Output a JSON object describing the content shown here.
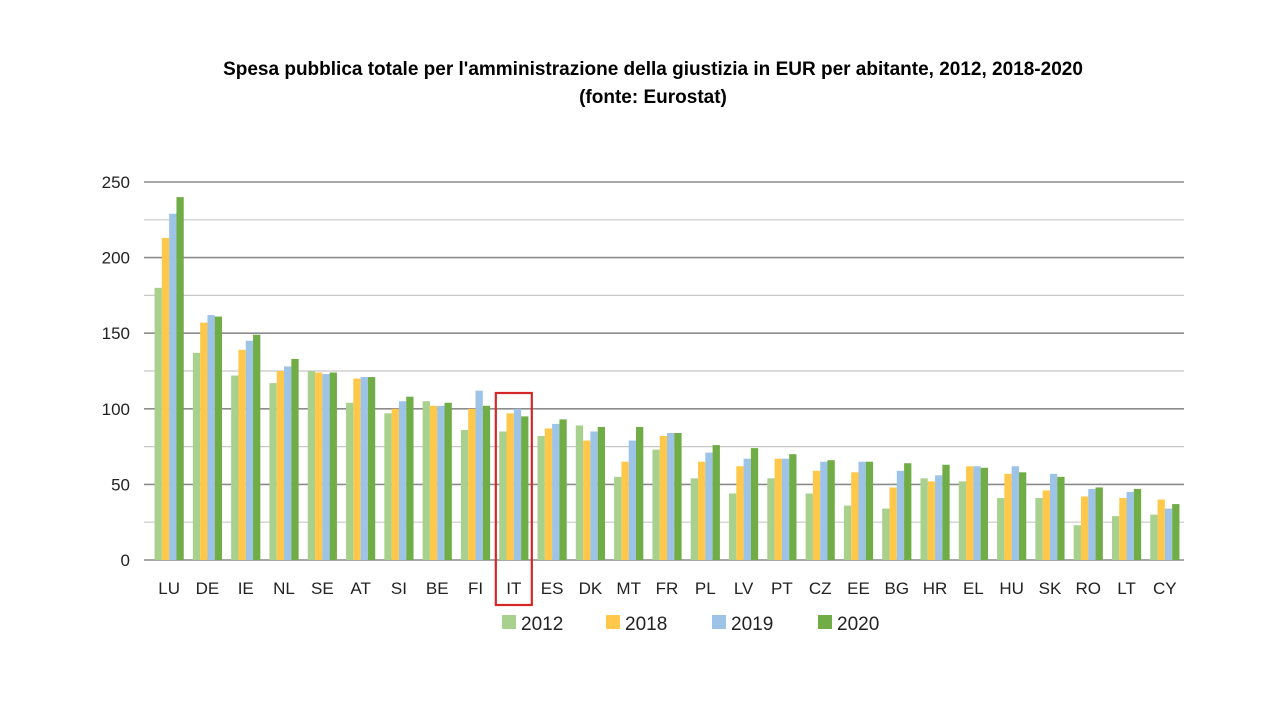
{
  "chart_data": {
    "type": "bar",
    "title": "Spesa pubblica totale per l'amministrazione della giustizia in EUR per abitante, 2012, 2018-2020",
    "subtitle": "(fonte: Eurostat)",
    "xlabel": "",
    "ylabel": "",
    "ylim": [
      0,
      250
    ],
    "yticks": [
      0,
      50,
      100,
      150,
      200,
      250
    ],
    "grid": true,
    "legend_position": "bottom",
    "highlight": "IT",
    "categories": [
      "LU",
      "DE",
      "IE",
      "NL",
      "SE",
      "AT",
      "SI",
      "BE",
      "FI",
      "IT",
      "ES",
      "DK",
      "MT",
      "FR",
      "PL",
      "LV",
      "PT",
      "CZ",
      "EE",
      "BG",
      "HR",
      "EL",
      "HU",
      "SK",
      "RO",
      "LT",
      "CY"
    ],
    "series": [
      {
        "name": "2012",
        "color": "#a9d18e",
        "values": [
          180,
          137,
          122,
          117,
          125,
          104,
          97,
          105,
          86,
          85,
          82,
          89,
          55,
          73,
          54,
          44,
          54,
          44,
          36,
          34,
          54,
          52,
          41,
          41,
          23,
          29,
          30
        ]
      },
      {
        "name": "2018",
        "color": "#ffc84a",
        "values": [
          213,
          157,
          139,
          125,
          124,
          120,
          100,
          102,
          100,
          97,
          87,
          79,
          65,
          82,
          65,
          62,
          67,
          59,
          58,
          48,
          52,
          62,
          57,
          46,
          42,
          41,
          40
        ]
      },
      {
        "name": "2019",
        "color": "#9dc3e6",
        "values": [
          229,
          162,
          145,
          128,
          123,
          121,
          105,
          102,
          112,
          100,
          90,
          85,
          79,
          84,
          71,
          67,
          67,
          65,
          65,
          59,
          56,
          62,
          62,
          57,
          47,
          45,
          34
        ]
      },
      {
        "name": "2020",
        "color": "#70ad47",
        "values": [
          240,
          161,
          149,
          133,
          124,
          121,
          108,
          104,
          102,
          95,
          93,
          88,
          88,
          84,
          76,
          74,
          70,
          66,
          65,
          64,
          63,
          61,
          58,
          55,
          48,
          47,
          37
        ]
      }
    ]
  }
}
